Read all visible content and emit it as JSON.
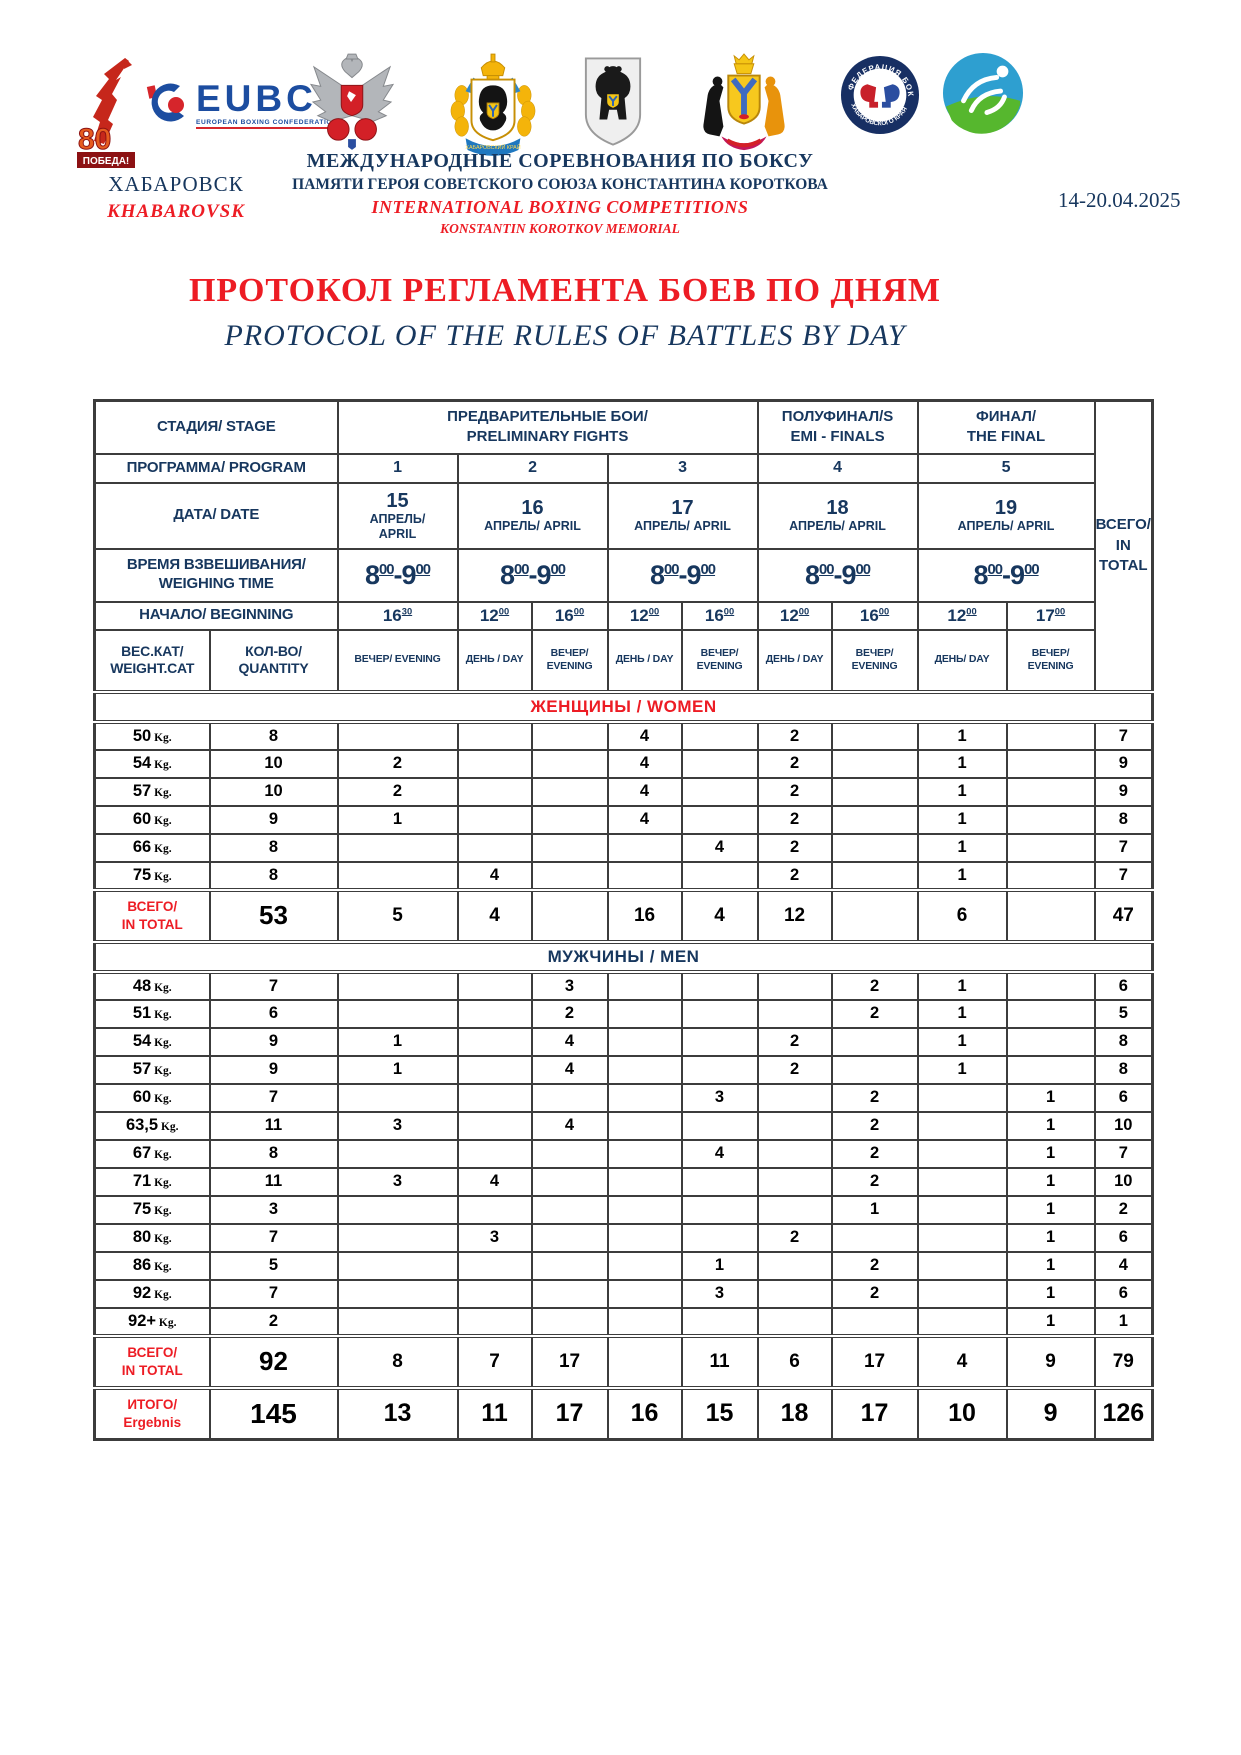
{
  "colors": {
    "navy": "#17375e",
    "red": "#ed1c24"
  },
  "header": {
    "victory": {
      "num": "80",
      "label": "ПОБЕДА!"
    },
    "eubc": {
      "name": "EUBC",
      "sub": "EUROPEAN BOXING CONFEDERATION"
    },
    "fed_top": "ФЕДЕРАЦИЯ БОКСА",
    "fed_bottom": "ХАБАРОВСКОГО КРАЯ",
    "krai_ribbon": "ХАБАРОВСКИЙ КРАЙ",
    "city_ru": "ХАБАРОВСК",
    "city_en": "KHABAROVSK",
    "title_ru1": "МЕЖДУНАРОДНЫЕ СОРЕВНОВАНИЯ ПО БОКСУ",
    "title_ru2": "ПАМЯТИ ГЕРОЯ СОВЕТСКОГО СОЮЗА КОНСТАНТИНА КОРОТКОВА",
    "title_en1": "INTERNATIONAL BOXING COMPETITIONS",
    "title_en2": "KONSTANTIN KOROTKOV MEMORIAL",
    "dates": "14-20.04.2025"
  },
  "doc_title": {
    "ru": "ПРОТОКОЛ РЕГЛАМЕНТА БОЕВ ПО ДНЯМ",
    "en": "PROTOCOL OF THE RULES OF BATTLES BY DAY"
  },
  "table": {
    "stage_label": "СТАДИЯ/ STAGE",
    "stages": [
      "ПРЕДВАРИТЕЛЬНЫЕ БОИ/\nPRELIMINARY FIGHTS",
      "ПОЛУФИНАЛ/S\nEMI - FINALS",
      "ФИНАЛ/\nTHE FINAL"
    ],
    "program_label": "ПРОГРАММА/ PROGRAM",
    "programs": [
      "1",
      "2",
      "3",
      "4",
      "5"
    ],
    "date_label": "ДАТА/ DATE",
    "dates": [
      {
        "day": "15",
        "month": "АПРЕЛЬ/\nAPRIL"
      },
      {
        "day": "16",
        "month": "АПРЕЛЬ/ APRIL"
      },
      {
        "day": "17",
        "month": "АПРЕЛЬ/ APRIL"
      },
      {
        "day": "18",
        "month": "АПРЕЛЬ/ APRIL"
      },
      {
        "day": "19",
        "month": "АПРЕЛЬ/ APRIL"
      }
    ],
    "weighing_label": "ВРЕМЯ ВЗВЕШИВАНИЯ/\nWEIGHING TIME",
    "weighing_times": [
      {
        "from": "8",
        "from_sup": "00",
        "to": "9",
        "to_sup": "00"
      },
      {
        "from": "8",
        "from_sup": "00",
        "to": "9",
        "to_sup": "00"
      },
      {
        "from": "8",
        "from_sup": "00",
        "to": "9",
        "to_sup": "00"
      },
      {
        "from": "8",
        "from_sup": "00",
        "to": "9",
        "to_sup": "00"
      },
      {
        "from": "8",
        "from_sup": "00",
        "to": "9",
        "to_sup": "00"
      }
    ],
    "beginning_label": "НАЧАЛО/ BEGINNING",
    "beginning_times": [
      {
        "t": "16",
        "sup": "30"
      },
      {
        "t": "12",
        "sup": "00"
      },
      {
        "t": "16",
        "sup": "00"
      },
      {
        "t": "12",
        "sup": "00"
      },
      {
        "t": "16",
        "sup": "00"
      },
      {
        "t": "12",
        "sup": "00"
      },
      {
        "t": "16",
        "sup": "00"
      },
      {
        "t": "12",
        "sup": "00"
      },
      {
        "t": "17",
        "sup": "00"
      }
    ],
    "weightcat_label": "ВЕС.КАТ/\nWEIGHT.CAT",
    "quantity_label": "КОЛ-ВО/\nQUANTITY",
    "session_labels": [
      "ВЕЧЕР/ EVENING",
      "ДЕНЬ / DAY",
      "ВЕЧЕР/ EVENING",
      "ДЕНЬ / DAY",
      "ВЕЧЕР/ EVENING",
      "ДЕНЬ / DAY",
      "ВЕЧЕР/ EVENING",
      "ДЕНЬ/ DAY",
      "ВЕЧЕР/ EVENING"
    ],
    "total_label": "ВСЕГО/\nIN TOTAL",
    "kg_suffix": "Kg.",
    "women_header": "ЖЕНЩИНЫ / WOMEN",
    "men_header": "МУЖЧИНЫ / MEN",
    "women_rows": [
      {
        "cat": "50",
        "qty": "8",
        "cells": [
          "",
          "",
          "",
          "4",
          "",
          "2",
          "",
          "1",
          ""
        ],
        "total": "7"
      },
      {
        "cat": "54",
        "qty": "10",
        "cells": [
          "2",
          "",
          "",
          "4",
          "",
          "2",
          "",
          "1",
          ""
        ],
        "total": "9"
      },
      {
        "cat": "57",
        "qty": "10",
        "cells": [
          "2",
          "",
          "",
          "4",
          "",
          "2",
          "",
          "1",
          ""
        ],
        "total": "9"
      },
      {
        "cat": "60",
        "qty": "9",
        "cells": [
          "1",
          "",
          "",
          "4",
          "",
          "2",
          "",
          "1",
          ""
        ],
        "total": "8"
      },
      {
        "cat": "66",
        "qty": "8",
        "cells": [
          "",
          "",
          "",
          "",
          "4",
          "2",
          "",
          "1",
          ""
        ],
        "total": "7"
      },
      {
        "cat": "75",
        "qty": "8",
        "cells": [
          "",
          "4",
          "",
          "",
          "",
          "2",
          "",
          "1",
          ""
        ],
        "total": "7"
      }
    ],
    "women_total": {
      "label": "ВСЕГО/\nIN TOTAL",
      "qty": "53",
      "cells": [
        "5",
        "4",
        "",
        "16",
        "4",
        "12",
        "",
        "6",
        ""
      ],
      "total": "47"
    },
    "men_rows": [
      {
        "cat": "48",
        "qty": "7",
        "cells": [
          "",
          "",
          "3",
          "",
          "",
          "",
          "2",
          "1",
          ""
        ],
        "total": "6"
      },
      {
        "cat": "51",
        "qty": "6",
        "cells": [
          "",
          "",
          "2",
          "",
          "",
          "",
          "2",
          "1",
          ""
        ],
        "total": "5"
      },
      {
        "cat": "54",
        "qty": "9",
        "cells": [
          "1",
          "",
          "4",
          "",
          "",
          "2",
          "",
          "1",
          ""
        ],
        "total": "8"
      },
      {
        "cat": "57",
        "qty": "9",
        "cells": [
          "1",
          "",
          "4",
          "",
          "",
          "2",
          "",
          "1",
          ""
        ],
        "total": "8"
      },
      {
        "cat": "60",
        "qty": "7",
        "cells": [
          "",
          "",
          "",
          "",
          "3",
          "",
          "2",
          "",
          "1"
        ],
        "total": "6"
      },
      {
        "cat": "63,5",
        "qty": "11",
        "cells": [
          "3",
          "",
          "4",
          "",
          "",
          "",
          "2",
          "",
          "1"
        ],
        "total": "10"
      },
      {
        "cat": "67",
        "qty": "8",
        "cells": [
          "",
          "",
          "",
          "",
          "4",
          "",
          "2",
          "",
          "1"
        ],
        "total": "7"
      },
      {
        "cat": "71",
        "qty": "11",
        "cells": [
          "3",
          "4",
          "",
          "",
          "",
          "",
          "2",
          "",
          "1"
        ],
        "total": "10"
      },
      {
        "cat": "75",
        "qty": "3",
        "cells": [
          "",
          "",
          "",
          "",
          "",
          "",
          "1",
          "",
          "1"
        ],
        "total": "2"
      },
      {
        "cat": "80",
        "qty": "7",
        "cells": [
          "",
          "3",
          "",
          "",
          "",
          "2",
          "",
          "",
          "1"
        ],
        "total": "6"
      },
      {
        "cat": "86",
        "qty": "5",
        "cells": [
          "",
          "",
          "",
          "",
          "1",
          "",
          "2",
          "",
          "1"
        ],
        "total": "4"
      },
      {
        "cat": "92",
        "qty": "7",
        "cells": [
          "",
          "",
          "",
          "",
          "3",
          "",
          "2",
          "",
          "1"
        ],
        "total": "6"
      },
      {
        "cat": "92+",
        "qty": "2",
        "cells": [
          "",
          "",
          "",
          "",
          "",
          "",
          "",
          "",
          "1"
        ],
        "total": "1"
      }
    ],
    "men_total": {
      "label": "ВСЕГО/\nIN TOTAL",
      "qty": "92",
      "cells": [
        "8",
        "7",
        "17",
        "",
        "11",
        "6",
        "17",
        "4",
        "9"
      ],
      "total": "79"
    },
    "grand_total": {
      "label": "ИТОГО/\nErgebnis",
      "qty": "145",
      "cells": [
        "13",
        "11",
        "17",
        "16",
        "15",
        "18",
        "17",
        "10",
        "9"
      ],
      "total": "126"
    }
  }
}
